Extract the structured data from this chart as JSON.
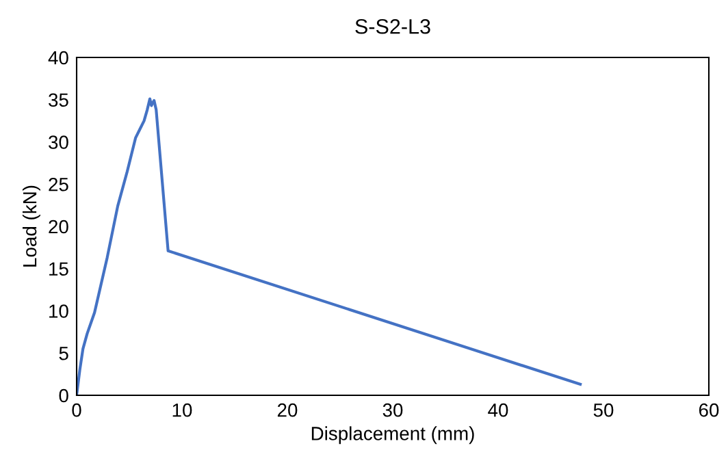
{
  "chart_data": {
    "type": "line",
    "title": "S-S2-L3",
    "xlabel": "Displacement (mm)",
    "ylabel": "Load (kN)",
    "xlim": [
      0,
      60
    ],
    "xticks": [
      0,
      10,
      20,
      30,
      40,
      50,
      60
    ],
    "ylim": [
      0,
      40
    ],
    "yticks": [
      0,
      5,
      10,
      15,
      20,
      25,
      30,
      35,
      40
    ],
    "grid": false,
    "legend": false,
    "marker": "none",
    "line_style": "solid",
    "series": [
      {
        "color": "#4472c4",
        "x": [
          0,
          0.3,
          0.6,
          1.0,
          1.7,
          2.9,
          3.9,
          4.8,
          5.6,
          6.0,
          6.4,
          6.7,
          6.95,
          7.1,
          7.2,
          7.35,
          7.55,
          8.68,
          47.8
        ],
        "values": [
          0,
          3.0,
          5.5,
          7.3,
          9.8,
          16.3,
          22.4,
          26.5,
          30.5,
          31.5,
          32.5,
          33.8,
          35.1,
          34.3,
          34.6,
          34.9,
          33.8,
          17.1,
          1.3
        ]
      }
    ]
  }
}
